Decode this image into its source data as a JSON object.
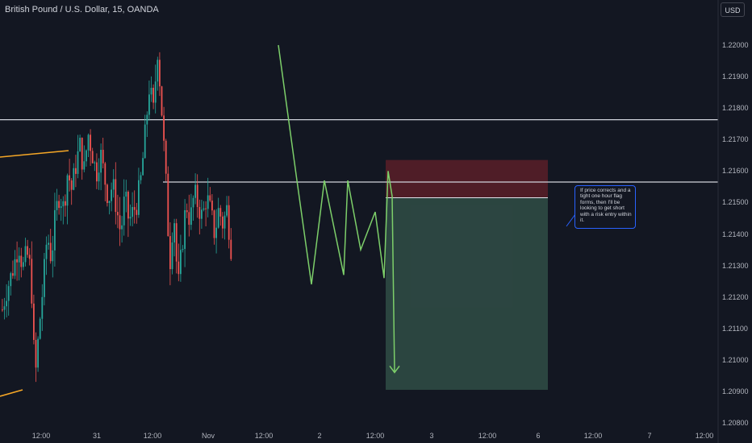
{
  "header": {
    "title": "British Pound / U.S. Dollar, 15, OANDA",
    "currency": "USD"
  },
  "note": {
    "text": "If price corrects and a tight one hour flag forms, then I'll be looking to get short with a risk entry within it."
  },
  "colors": {
    "background": "#131722",
    "candle_up": "#26a69a",
    "candle_down": "#ef5350",
    "projection": "#7dcf6a",
    "trend_line": "#f6a726",
    "level_line": "#d1d4dc",
    "stop_zone": "#5b1f28",
    "target_zone": "#2f4a44",
    "note_border": "#2962ff"
  },
  "chart_data": {
    "type": "candlestick",
    "symbol": "British Pound / U.S. Dollar",
    "interval": "15",
    "exchange": "OANDA",
    "ylim": [
      1.208,
      1.2205
    ],
    "y_ticks": [
      "1.22000",
      "1.21900",
      "1.21800",
      "1.21700",
      "1.21600",
      "1.21500",
      "1.21400",
      "1.21300",
      "1.21200",
      "1.21100",
      "1.21000",
      "1.20900",
      "1.20800"
    ],
    "x_ticks": [
      "12:00",
      "31",
      "12:00",
      "Nov",
      "12:00",
      "2",
      "12:00",
      "3",
      "12:00",
      "6",
      "12:00",
      "7",
      "12:00"
    ],
    "horizontal_levels": [
      1.21763,
      1.21565
    ],
    "price_path": [
      1.2116,
      1.2122,
      1.2126,
      1.2131,
      1.2137,
      1.2129,
      1.2134,
      1.2128,
      1.2093,
      1.211,
      1.2124,
      1.214,
      1.2132,
      1.2146,
      1.2153,
      1.2148,
      1.216,
      1.2154,
      1.2162,
      1.2168,
      1.216,
      1.2172,
      1.2166,
      1.2159,
      1.2166,
      1.2158,
      1.2151,
      1.2156,
      1.2148,
      1.214,
      1.2152,
      1.2144,
      1.2147,
      1.215,
      1.2158,
      1.2172,
      1.2187,
      1.2179,
      1.2199,
      1.218,
      1.2158,
      1.213,
      1.2148,
      1.2122,
      1.2136,
      1.215,
      1.2144,
      1.2153,
      1.2149,
      1.2145,
      1.2152,
      1.2147,
      1.214,
      1.2148,
      1.2143,
      1.2148,
      1.2136
    ],
    "projection_path": [
      [
        1.22
      ],
      [
        1.2157
      ],
      [
        1.2124
      ],
      [
        1.2157
      ],
      [
        1.2127
      ],
      [
        1.2157
      ],
      [
        1.2135
      ],
      [
        1.2147
      ],
      [
        1.2126
      ],
      [
        1.216
      ],
      [
        1.2152
      ],
      [
        1.2096
      ]
    ],
    "trade": {
      "stop": 1.21635,
      "entry": 1.21515,
      "target": 1.20905
    }
  }
}
